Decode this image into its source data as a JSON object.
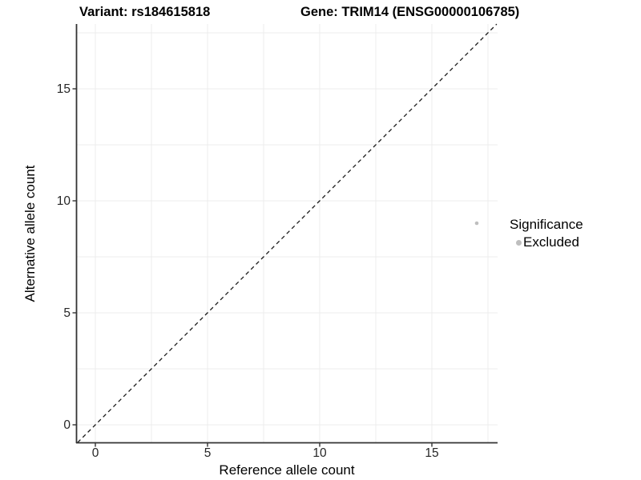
{
  "header": {
    "title_left": "Variant: rs184615818",
    "title_right": "Gene: TRIM14 (ENSG00000106785)"
  },
  "chart_data": {
    "type": "scatter",
    "title_left": "Variant: rs184615818",
    "title_right": "Gene: TRIM14 (ENSG00000106785)",
    "xlabel": "Reference allele count",
    "ylabel": "Alternative allele count",
    "xlim": [
      -0.82,
      17.9
    ],
    "ylim": [
      -0.79,
      17.89
    ],
    "x_ticks": [
      0,
      5,
      10,
      15
    ],
    "y_ticks": [
      0,
      5,
      10,
      15
    ],
    "grid": {
      "show": true,
      "interval": 2.5
    },
    "points": [
      {
        "x": 17,
        "y": 9,
        "significance": "Excluded"
      }
    ],
    "reference_line": {
      "type": "identity y=x",
      "style": "dashed"
    },
    "legend": {
      "position": "right",
      "title": "Significance",
      "items": [
        {
          "label": "Excluded",
          "color": "#bebebe"
        }
      ]
    }
  },
  "colors": {
    "background": "#ffffff",
    "grid": "#ececec",
    "axis": "#333333",
    "tick_text": "#262626",
    "dashed_line": "#1a1a1a",
    "point": "#bebebe"
  }
}
